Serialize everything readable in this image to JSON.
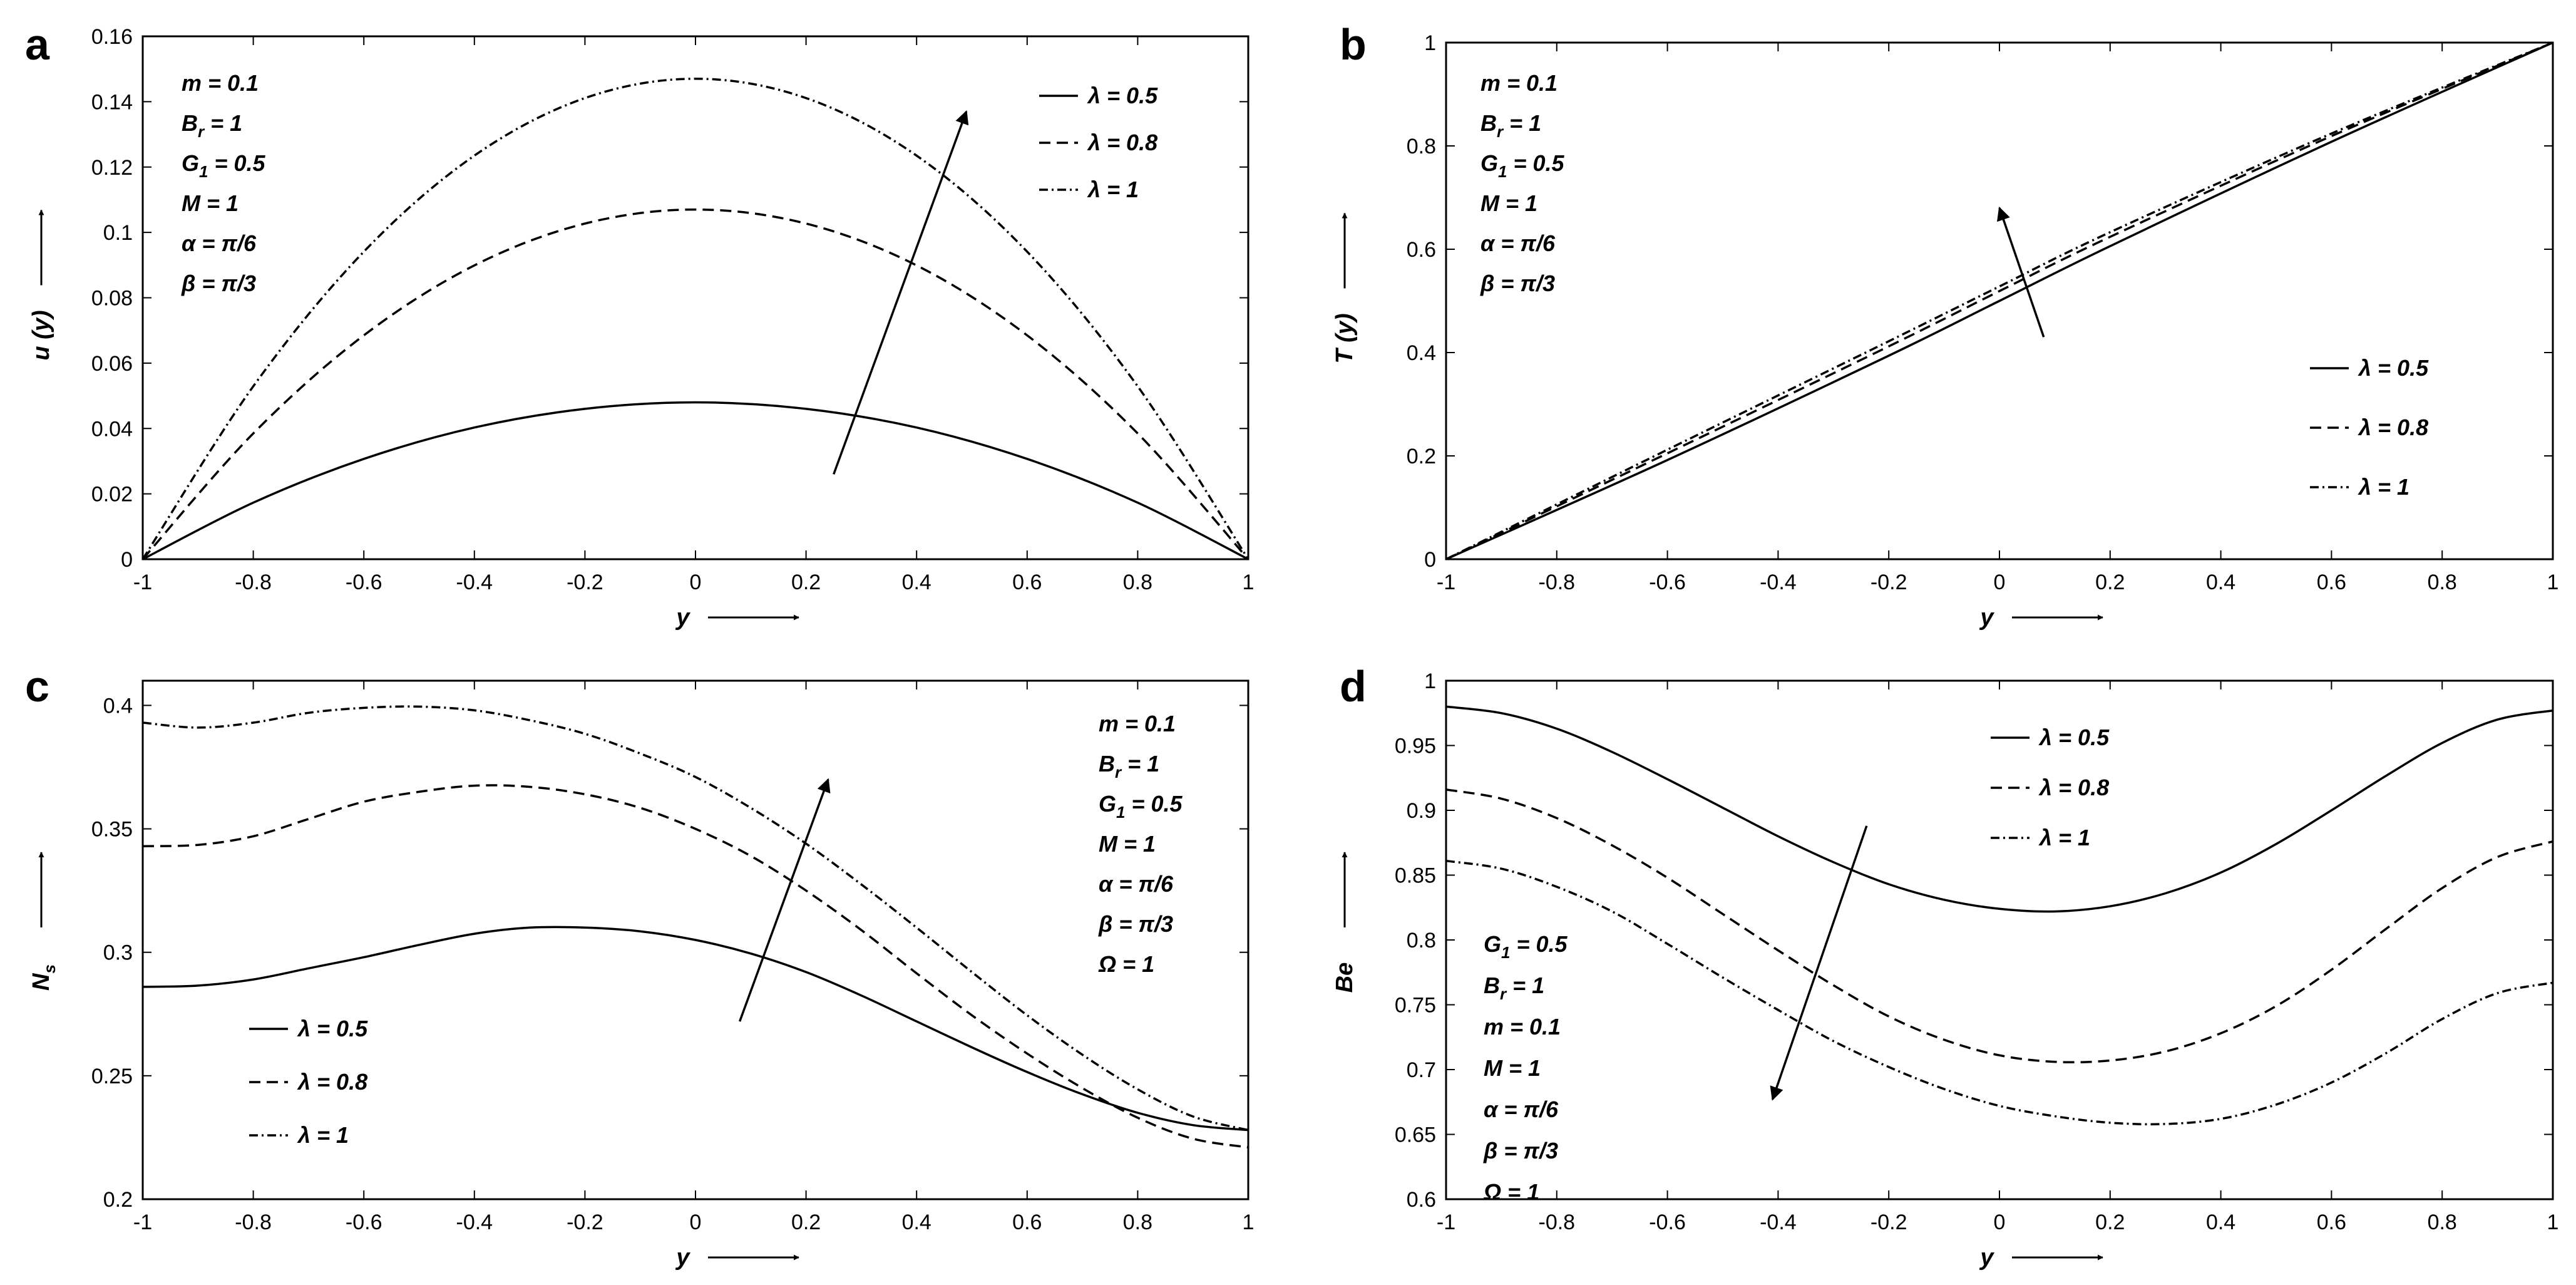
{
  "chart_data": [
    {
      "panel_label": "a",
      "type": "line",
      "xlabel": "y",
      "ylabel": "u (y)",
      "xlim": [
        -1,
        1
      ],
      "ylim": [
        0,
        0.16
      ],
      "xticks": [
        "-1",
        "-0.8",
        "-0.6",
        "-0.4",
        "-0.2",
        "0",
        "0.2",
        "0.4",
        "0.6",
        "0.8",
        "1"
      ],
      "yticks": [
        "0",
        "0.02",
        "0.04",
        "0.06",
        "0.08",
        "0.1",
        "0.12",
        "0.14",
        "0.16"
      ],
      "params": [
        "m = 0.1",
        "B_r = 1",
        "G_1 = 0.5",
        "M = 1",
        "α = π/6",
        "β = π/3"
      ],
      "series": [
        {
          "name": "λ = 0.5",
          "style": "solid",
          "x": [
            -1,
            -0.8,
            -0.6,
            -0.4,
            -0.2,
            0,
            0.2,
            0.4,
            0.6,
            0.8,
            1
          ],
          "values": [
            0,
            0.0173,
            0.0307,
            0.0403,
            0.046,
            0.048,
            0.046,
            0.0403,
            0.0307,
            0.0173,
            0
          ]
        },
        {
          "name": "λ = 0.8",
          "style": "dashed",
          "x": [
            -1,
            -0.8,
            -0.6,
            -0.4,
            -0.2,
            0,
            0.2,
            0.4,
            0.6,
            0.8,
            1
          ],
          "values": [
            0,
            0.0385,
            0.0685,
            0.0899,
            0.1027,
            0.107,
            0.1027,
            0.0899,
            0.0685,
            0.0385,
            0
          ]
        },
        {
          "name": "λ = 1",
          "style": "dashdot",
          "x": [
            -1,
            -0.8,
            -0.6,
            -0.4,
            -0.2,
            0,
            0.2,
            0.4,
            0.6,
            0.8,
            1
          ],
          "values": [
            0,
            0.0529,
            0.0941,
            0.1235,
            0.1411,
            0.147,
            0.1411,
            0.1235,
            0.0941,
            0.0529,
            0
          ]
        }
      ],
      "arrow": {
        "from": [
          0.25,
          0.026
        ],
        "to": [
          0.49,
          0.137
        ]
      },
      "legend_position": "top-right",
      "params_position": "top-left"
    },
    {
      "panel_label": "b",
      "type": "line",
      "xlabel": "y",
      "ylabel": "T (y)",
      "xlim": [
        -1,
        1
      ],
      "ylim": [
        0,
        1
      ],
      "xticks": [
        "-1",
        "-0.8",
        "-0.6",
        "-0.4",
        "-0.2",
        "0",
        "0.2",
        "0.4",
        "0.6",
        "0.8",
        "1"
      ],
      "yticks": [
        "0",
        "0.2",
        "0.4",
        "0.6",
        "0.8",
        "1"
      ],
      "params": [
        "m = 0.1",
        "B_r = 1",
        "G_1 = 0.5",
        "M = 1",
        "α = π/6",
        "β = π/3"
      ],
      "series": [
        {
          "name": "λ = 0.5",
          "style": "solid",
          "x": [
            -1,
            -0.6,
            -0.2,
            0,
            0.2,
            0.6,
            1
          ],
          "values": [
            0,
            0.192,
            0.394,
            0.5,
            0.606,
            0.808,
            1
          ]
        },
        {
          "name": "λ = 0.8",
          "style": "dashed",
          "x": [
            -1,
            -0.6,
            -0.2,
            0,
            0.2,
            0.6,
            1
          ],
          "values": [
            0,
            0.205,
            0.412,
            0.519,
            0.624,
            0.819,
            1
          ]
        },
        {
          "name": "λ = 1",
          "style": "dashdot",
          "x": [
            -1,
            -0.6,
            -0.2,
            0,
            0.2,
            0.6,
            1
          ],
          "values": [
            0,
            0.212,
            0.422,
            0.528,
            0.633,
            0.824,
            1
          ]
        }
      ],
      "arrow": {
        "from": [
          0.08,
          0.43
        ],
        "to": [
          0,
          0.68
        ]
      },
      "legend_position": "center-right",
      "params_position": "top-left"
    },
    {
      "panel_label": "c",
      "type": "line",
      "xlabel": "y",
      "ylabel": "N_s",
      "xlim": [
        -1,
        1
      ],
      "ylim": [
        0.2,
        0.41
      ],
      "xticks": [
        "-1",
        "-0.8",
        "-0.6",
        "-0.4",
        "-0.2",
        "0",
        "0.2",
        "0.4",
        "0.6",
        "0.8",
        "1"
      ],
      "yticks": [
        "0.2",
        "0.25",
        "0.3",
        "0.35",
        "0.4"
      ],
      "params": [
        "m = 0.1",
        "B_r = 1",
        "G_1 = 0.5",
        "M = 1",
        "α = π/6",
        "β = π/3",
        "Ω = 1"
      ],
      "series": [
        {
          "name": "λ = 0.5",
          "style": "solid",
          "x": [
            -1,
            -0.9,
            -0.8,
            -0.7,
            -0.6,
            -0.5,
            -0.4,
            -0.3,
            -0.2,
            -0.1,
            0,
            0.1,
            0.2,
            0.3,
            0.4,
            0.5,
            0.6,
            0.7,
            0.8,
            0.9,
            1
          ],
          "values": [
            0.286,
            0.2865,
            0.289,
            0.2935,
            0.298,
            0.303,
            0.3075,
            0.31,
            0.31,
            0.3085,
            0.305,
            0.2995,
            0.292,
            0.2825,
            0.272,
            0.2615,
            0.2515,
            0.2425,
            0.235,
            0.23,
            0.228
          ]
        },
        {
          "name": "λ = 0.8",
          "style": "dashed",
          "x": [
            -1,
            -0.9,
            -0.8,
            -0.7,
            -0.6,
            -0.5,
            -0.4,
            -0.3,
            -0.2,
            -0.1,
            0,
            0.1,
            0.2,
            0.3,
            0.4,
            0.5,
            0.6,
            0.7,
            0.8,
            0.9,
            1
          ],
          "values": [
            0.343,
            0.3435,
            0.347,
            0.354,
            0.361,
            0.365,
            0.3675,
            0.367,
            0.364,
            0.3585,
            0.35,
            0.339,
            0.325,
            0.309,
            0.2915,
            0.2745,
            0.259,
            0.245,
            0.233,
            0.2245,
            0.221
          ]
        },
        {
          "name": "λ = 1",
          "style": "dashdot",
          "x": [
            -1,
            -0.9,
            -0.8,
            -0.7,
            -0.6,
            -0.5,
            -0.4,
            -0.3,
            -0.2,
            -0.1,
            0,
            0.1,
            0.2,
            0.3,
            0.4,
            0.5,
            0.6,
            0.7,
            0.8,
            0.9,
            1
          ],
          "values": [
            0.393,
            0.391,
            0.393,
            0.397,
            0.399,
            0.3995,
            0.398,
            0.394,
            0.3885,
            0.3805,
            0.371,
            0.3585,
            0.344,
            0.3275,
            0.31,
            0.292,
            0.2745,
            0.2585,
            0.2445,
            0.2335,
            0.228
          ]
        }
      ],
      "arrow": {
        "from": [
          0.08,
          0.272
        ],
        "to": [
          0.24,
          0.37
        ]
      },
      "legend_position": "bottom-left",
      "params_position": "top-right"
    },
    {
      "panel_label": "d",
      "type": "line",
      "xlabel": "y",
      "ylabel": "Be",
      "xlim": [
        -1,
        1
      ],
      "ylim": [
        0.6,
        1
      ],
      "xticks": [
        "-1",
        "-0.8",
        "-0.6",
        "-0.4",
        "-0.2",
        "0",
        "0.2",
        "0.4",
        "0.6",
        "0.8",
        "1"
      ],
      "yticks": [
        "0.6",
        "0.65",
        "0.7",
        "0.75",
        "0.8",
        "0.85",
        "0.9",
        "0.95",
        "1"
      ],
      "params": [
        "G_1 = 0.5",
        "B_r = 1",
        "m = 0.1",
        "M = 1",
        "α = π/6",
        "β = π/3",
        "Ω = 1"
      ],
      "series": [
        {
          "name": "λ = 0.5",
          "style": "solid",
          "x": [
            -1,
            -0.9,
            -0.8,
            -0.7,
            -0.6,
            -0.5,
            -0.4,
            -0.3,
            -0.2,
            -0.1,
            0,
            0.1,
            0.2,
            0.3,
            0.4,
            0.5,
            0.6,
            0.7,
            0.8,
            0.9,
            1
          ],
          "values": [
            0.98,
            0.975,
            0.963,
            0.945,
            0.924,
            0.902,
            0.88,
            0.86,
            0.843,
            0.831,
            0.824,
            0.822,
            0.826,
            0.836,
            0.852,
            0.874,
            0.9,
            0.927,
            0.952,
            0.97,
            0.977
          ]
        },
        {
          "name": "λ = 0.8",
          "style": "dashed",
          "x": [
            -1,
            -0.9,
            -0.8,
            -0.7,
            -0.6,
            -0.5,
            -0.4,
            -0.3,
            -0.2,
            -0.1,
            0,
            0.1,
            0.2,
            0.3,
            0.4,
            0.5,
            0.6,
            0.7,
            0.8,
            0.9,
            1
          ],
          "values": [
            0.916,
            0.909,
            0.894,
            0.873,
            0.848,
            0.82,
            0.792,
            0.765,
            0.741,
            0.723,
            0.711,
            0.706,
            0.707,
            0.714,
            0.728,
            0.749,
            0.777,
            0.809,
            0.84,
            0.864,
            0.876
          ]
        },
        {
          "name": "λ = 1",
          "style": "dashdot",
          "x": [
            -1,
            -0.9,
            -0.8,
            -0.7,
            -0.6,
            -0.5,
            -0.4,
            -0.3,
            -0.2,
            -0.1,
            0,
            0.1,
            0.2,
            0.3,
            0.4,
            0.5,
            0.6,
            0.7,
            0.8,
            0.9,
            1
          ],
          "values": [
            0.861,
            0.855,
            0.841,
            0.822,
            0.797,
            0.771,
            0.746,
            0.722,
            0.702,
            0.685,
            0.672,
            0.664,
            0.659,
            0.658,
            0.662,
            0.673,
            0.69,
            0.713,
            0.739,
            0.759,
            0.767
          ]
        }
      ],
      "arrow": {
        "from": [
          -0.24,
          0.888
        ],
        "to": [
          -0.41,
          0.677
        ]
      },
      "legend_position": "top-center",
      "params_position": "bottom-left"
    }
  ]
}
